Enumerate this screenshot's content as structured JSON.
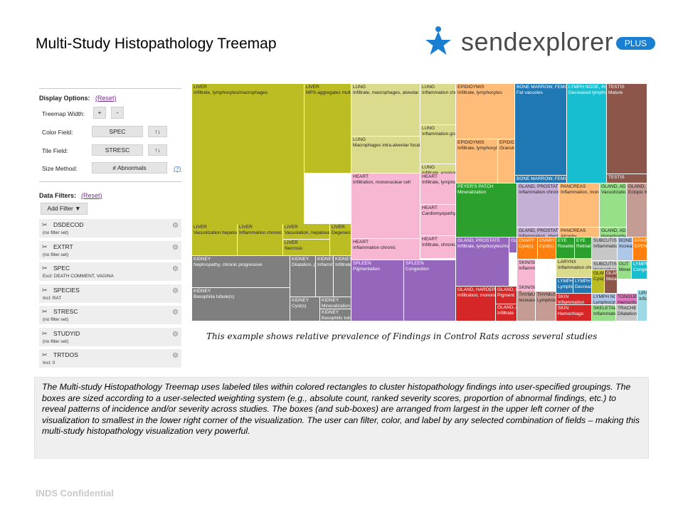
{
  "title": "Multi-Study Histopathology Treemap",
  "logo": {
    "name": "sendexplorer",
    "badge": "PLUS",
    "icon": "star-person-icon",
    "text_color": "#4a4a4a",
    "accent": "#1b7fd1"
  },
  "panel": {
    "display_options": {
      "title": "Display Options:",
      "reset": "(Reset)",
      "treemap_width_label": "Treemap Width:",
      "plus": "+",
      "minus": "-",
      "color_field_label": "Color Field:",
      "color_field_value": "SPEC",
      "tile_field_label": "Tile Field:",
      "tile_field_value": "STRESC",
      "size_method_label": "Size Method:",
      "size_method_value": "# Abnormals",
      "sort_icon": "↑↓",
      "help": "(?)"
    },
    "data_filters": {
      "title": "Data Filters:",
      "reset": "(Reset)",
      "add_filter": "Add Filter ▼",
      "filters": [
        {
          "name": "DSDECOD",
          "desc": "(no filter set)"
        },
        {
          "name": "EXTRT",
          "desc": "(no filter set)"
        },
        {
          "name": "SPEC",
          "desc": "Excl: DEATH COMMENT, VAGINA"
        },
        {
          "name": "SPECIES",
          "desc": "Incl: RAT"
        },
        {
          "name": "STRESC",
          "desc": "(no filter set)"
        },
        {
          "name": "STUDYID",
          "desc": "(no filter set)"
        },
        {
          "name": "TRTDOS",
          "desc": "Incl: 0"
        }
      ]
    }
  },
  "treemap": {
    "tiles": [
      {
        "l": "LIVER",
        "s": "Infiltrate, lymphocytes/macrophages",
        "c": "#bcbd22"
      },
      {
        "l": "LIVER",
        "s": "MPS-aggregates multifocal",
        "c": "#bcbd22"
      },
      {
        "l": "LIVER",
        "s": "Vacuolization hepatocellular",
        "c": "#bcbd22"
      },
      {
        "l": "LIVER",
        "s": "Inflammation chronic",
        "c": "#bcbd22"
      },
      {
        "l": "LIVER",
        "s": "Vacuolation, hepatocellular",
        "c": "#bcbd22"
      },
      {
        "l": "LIVER",
        "s": "Degeneration",
        "c": "#bcbd22"
      },
      {
        "l": "LIVER",
        "s": "Necrosis",
        "c": "#bcbd22"
      },
      {
        "l": "KIDNEY",
        "s": "Nephropathy, chronic progressive",
        "c": "#7f7f7f"
      },
      {
        "l": "KIDNEY",
        "s": "Dilatation, pelvis",
        "c": "#7f7f7f"
      },
      {
        "l": "KIDNEY",
        "s": "Inflammation",
        "c": "#7f7f7f"
      },
      {
        "l": "KIDNEY",
        "s": "Infiltrate",
        "c": "#7f7f7f"
      },
      {
        "l": "KIDNEY",
        "s": "Basophilia tubule(s)",
        "c": "#7f7f7f"
      },
      {
        "l": "KIDNEY",
        "s": "Cyst(s)",
        "c": "#7f7f7f"
      },
      {
        "l": "KIDNEY",
        "s": "Mineralization",
        "c": "#7f7f7f"
      },
      {
        "l": "KIDNEY",
        "s": "Basophilic tubule",
        "c": "#7f7f7f"
      },
      {
        "l": "LUNG",
        "s": "Infiltrate, macrophages, alveolar",
        "c": "#dbdb8d"
      },
      {
        "l": "LUNG",
        "s": "Inflammation chronic",
        "c": "#dbdb8d"
      },
      {
        "l": "LUNG",
        "s": "Inflammation granulomatous",
        "c": "#dbdb8d"
      },
      {
        "l": "LUNG",
        "s": "Macrophages intra-alveolar focal",
        "c": "#dbdb8d"
      },
      {
        "l": "LUNG",
        "s": "Infiltrate, eosinophils",
        "c": "#dbdb8d"
      },
      {
        "l": "HEART",
        "s": "Infiltration, mononuclear cell",
        "c": "#f7b6d2"
      },
      {
        "l": "HEART",
        "s": "Infiltrate, lymphocytes",
        "c": "#f7b6d2"
      },
      {
        "l": "HEART",
        "s": "Cardiomyopathy",
        "c": "#f7b6d2"
      },
      {
        "l": "HEART",
        "s": "Inflammation chronic",
        "c": "#f7b6d2"
      },
      {
        "l": "HEART",
        "s": "Infiltrate, chronic",
        "c": "#f7b6d2"
      },
      {
        "l": "SPLEEN",
        "s": "Pigmentation",
        "c": "#9467bd"
      },
      {
        "l": "SPLEEN",
        "s": "Congestion",
        "c": "#9467bd"
      },
      {
        "l": "EPIDIDYMIS",
        "s": "Infiltrate, lymphocytes",
        "c": "#ffbb78"
      },
      {
        "l": "EPIDIDYMIS",
        "s": "Infiltrate, lymphocytes",
        "c": "#ffbb78"
      },
      {
        "l": "EPIDIDYMIS",
        "s": "Granuloma",
        "c": "#ffbb78"
      },
      {
        "l": "PEYER'S PATCH",
        "s": "Mineralization",
        "c": "#2ca02c"
      },
      {
        "l": "GLAND, PROSTATE",
        "s": "Infiltrate, lymphocytes/macrophages",
        "c": "#9467bd"
      },
      {
        "l": "GLAND, PROSTATE",
        "s": "",
        "c": "#9467bd"
      },
      {
        "l": "GLAND, HARDERIAN",
        "s": "Infiltration, mononuclear",
        "c": "#d62728"
      },
      {
        "l": "GLAND, PITUITARY",
        "s": "Pigment",
        "c": "#d62728"
      },
      {
        "l": "GLAND, ADRENAL",
        "s": "Infiltrate",
        "c": "#d62728"
      },
      {
        "l": "BONE MARROW, FEMUR",
        "s": "Fat vacuoles",
        "c": "#1f77b4"
      },
      {
        "l": "BONE MARROW, FEMUR",
        "s": "",
        "c": "#1f77b4"
      },
      {
        "l": "LYMPH NODE, INGUINAL",
        "s": "Decreased lymphocytes",
        "c": "#17becf"
      },
      {
        "l": "TESTIS",
        "s": "Mature",
        "c": "#8c564b"
      },
      {
        "l": "TESTIS",
        "s": "",
        "c": "#8c564b"
      },
      {
        "l": "GLAND, PROSTATE",
        "s": "Inflammation chronic",
        "c": "#c5b0d5"
      },
      {
        "l": "GLAND, PROSTATE",
        "s": "Inflammation, chronic",
        "c": "#c5b0d5"
      },
      {
        "l": "PANCREAS",
        "s": "Inflammation, mononuclear",
        "c": "#ffbb78"
      },
      {
        "l": "PANCREAS",
        "s": "Atrophy",
        "c": "#ffbb78"
      },
      {
        "l": "GLAND, ADRENAL",
        "s": "Vacuolization",
        "c": "#98df8a"
      },
      {
        "l": "GLAND, ADRENAL",
        "s": "Hypertrophy",
        "c": "#98df8a"
      },
      {
        "l": "GLAND, THYROID",
        "s": "Ectopic thymus",
        "c": "#c49c94"
      },
      {
        "l": "OVARY",
        "s": "Cyst(s)",
        "c": "#ff7f0e"
      },
      {
        "l": "OVARY",
        "s": "Cyst(s)",
        "c": "#ff7f0e"
      },
      {
        "l": "EYE",
        "s": "Rosette",
        "c": "#2ca02c"
      },
      {
        "l": "EYE",
        "s": "Retinal",
        "c": "#2ca02c"
      },
      {
        "l": "SUBCUTIS",
        "s": "Inflammation",
        "c": "#c7c7c7"
      },
      {
        "l": "SUBCUTIS",
        "s": "Hemorrhage",
        "c": "#c7c7c7"
      },
      {
        "l": "BONE",
        "s": "Increased",
        "c": "#aec7e8"
      },
      {
        "l": "BRAIN",
        "s": "EPENDYMOMA",
        "c": "#ff7f0e"
      },
      {
        "l": "SKIN/SUBCUTIS",
        "s": "Inflammation chronic",
        "c": "#f7b6d2"
      },
      {
        "l": "SKIN/SUBCUTIS",
        "s": "Exudate",
        "c": "#f7b6d2"
      },
      {
        "l": "LARYNX",
        "s": "Inflammation chronic",
        "c": "#dbdb8d"
      },
      {
        "l": "LYMPH NODE",
        "s": "Lymphoid",
        "c": "#1f77b4"
      },
      {
        "l": "LYMPH NODE",
        "s": "Decreased",
        "c": "#1f77b4"
      },
      {
        "l": "GLAND, MAMMARY",
        "s": "Cyst(s)",
        "c": "#bcbd22"
      },
      {
        "l": "GLAND, THYROID",
        "s": "Metaplasia",
        "c": "#8c564b"
      },
      {
        "l": "GUT",
        "s": "Mineral",
        "c": "#98df8a"
      },
      {
        "l": "LYMPH NODE",
        "s": "Congestion",
        "c": "#17becf"
      },
      {
        "l": "THYMUS",
        "s": "Increased",
        "c": "#c49c94"
      },
      {
        "l": "THYMUS",
        "s": "Lymphoid",
        "c": "#c49c94"
      },
      {
        "l": "SKIN",
        "s": "Inflammation",
        "c": "#d62728"
      },
      {
        "l": "SKIN",
        "s": "Hemorrhage",
        "c": "#d62728"
      },
      {
        "l": "LYMPH NODE",
        "s": "Lymphocytes",
        "c": "#aec7e8"
      },
      {
        "l": "TONGUE",
        "s": "Hemorrhage",
        "c": "#e377c2"
      },
      {
        "l": "URINARY",
        "s": "Inflammation",
        "c": "#9edae5"
      },
      {
        "l": "SKELETAL",
        "s": "Inflammation",
        "c": "#98df8a"
      },
      {
        "l": "TRACHEA",
        "s": "Dilatation",
        "c": "#c7c7c7"
      }
    ]
  },
  "caption": "This example shows relative prevalence of Findings in Control Rats across several studies",
  "description": "The Multi-study Histopathology Treemap uses labeled tiles within colored rectangles to cluster histopathology findings into user-specified groupings.  The boxes are sized according to a user-selected weighting  system (e.g., absolute count, ranked severity scores, proportion of abnormal findings, etc.) to reveal patterns of incidence and/or severity across studies.  The boxes (and sub-boxes) are arranged from largest in the upper left corner of the visualization to smallest in the lower right corner of the visualization.  The user can filter, color, and label by any selected combination of fields – making this multi-study histopathology visualization very powerful.",
  "footer": "INDS Confidential"
}
